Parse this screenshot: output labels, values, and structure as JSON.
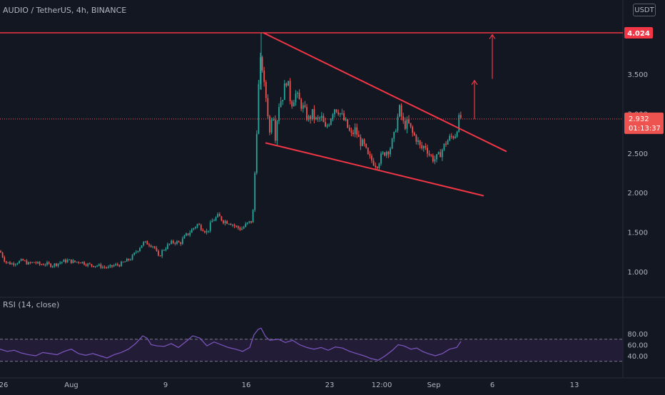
{
  "header": {
    "title": "AUDIO / TetherUS, 4h, BINANCE",
    "currency": "USDT"
  },
  "price_tags": {
    "resistance": "4.024",
    "last_price": "2.932",
    "countdown": "01:13:37"
  },
  "rsi": {
    "label": "RSI (14, close)"
  },
  "colors": {
    "background": "#131722",
    "up": "#26a69a",
    "down": "#ef5350",
    "drawing": "#f23645",
    "rsi_line": "#7e57c2",
    "rsi_band": "#2a1f3d",
    "axis_text": "#b2b5be",
    "grid": "#1e222d"
  },
  "chart_data": [
    {
      "type": "candlestick",
      "title": "AUDIO / TetherUS, 4h, BINANCE",
      "y_ticks": [
        "3.500",
        "3.000",
        "2.500",
        "2.000",
        "1.500",
        "1.000"
      ],
      "y_tick_values": [
        3.5,
        3.0,
        2.5,
        2.0,
        1.5,
        1.0
      ],
      "ylim": [
        0.9,
        4.2
      ],
      "x_ticks": [
        "26",
        "Aug",
        "9",
        "16",
        "23",
        "12:00",
        "Sep",
        "6",
        "13"
      ],
      "horizontal_line": 4.024,
      "last_price": 2.932,
      "close_path": [
        [
          0,
          1.26
        ],
        [
          8,
          1.12
        ],
        [
          16,
          1.1
        ],
        [
          24,
          1.12
        ],
        [
          32,
          1.14
        ],
        [
          40,
          1.1
        ],
        [
          48,
          1.12
        ],
        [
          56,
          1.09
        ],
        [
          64,
          1.1
        ],
        [
          72,
          1.08
        ],
        [
          80,
          1.1
        ],
        [
          88,
          1.13
        ],
        [
          96,
          1.14
        ],
        [
          104,
          1.12
        ],
        [
          112,
          1.13
        ],
        [
          120,
          1.1
        ],
        [
          128,
          1.08
        ],
        [
          136,
          1.08
        ],
        [
          144,
          1.06
        ],
        [
          152,
          1.05
        ],
        [
          160,
          1.08
        ],
        [
          168,
          1.09
        ],
        [
          176,
          1.13
        ],
        [
          184,
          1.17
        ],
        [
          192,
          1.27
        ],
        [
          200,
          1.36
        ],
        [
          208,
          1.36
        ],
        [
          216,
          1.32
        ],
        [
          222,
          1.18
        ],
        [
          228,
          1.27
        ],
        [
          236,
          1.34
        ],
        [
          244,
          1.38
        ],
        [
          252,
          1.36
        ],
        [
          260,
          1.45
        ],
        [
          268,
          1.52
        ],
        [
          276,
          1.6
        ],
        [
          284,
          1.55
        ],
        [
          290,
          1.5
        ],
        [
          298,
          1.65
        ],
        [
          306,
          1.7
        ],
        [
          314,
          1.64
        ],
        [
          322,
          1.63
        ],
        [
          330,
          1.57
        ],
        [
          338,
          1.54
        ],
        [
          346,
          1.6
        ],
        [
          354,
          1.65
        ],
        [
          358,
          2.4
        ],
        [
          362,
          3.3
        ],
        [
          366,
          3.75
        ],
        [
          370,
          3.35
        ],
        [
          374,
          3.15
        ],
        [
          378,
          2.75
        ],
        [
          382,
          3.1
        ],
        [
          386,
          2.7
        ],
        [
          390,
          3.1
        ],
        [
          396,
          3.22
        ],
        [
          402,
          3.45
        ],
        [
          408,
          3.12
        ],
        [
          414,
          3.25
        ],
        [
          420,
          3.15
        ],
        [
          426,
          3.05
        ],
        [
          432,
          2.92
        ],
        [
          438,
          3.0
        ],
        [
          444,
          2.9
        ],
        [
          450,
          2.96
        ],
        [
          456,
          2.8
        ],
        [
          462,
          2.92
        ],
        [
          468,
          3.08
        ],
        [
          474,
          3.05
        ],
        [
          480,
          2.95
        ],
        [
          486,
          2.85
        ],
        [
          492,
          2.72
        ],
        [
          498,
          2.8
        ],
        [
          504,
          2.65
        ],
        [
          510,
          2.6
        ],
        [
          516,
          2.45
        ],
        [
          522,
          2.4
        ],
        [
          528,
          2.35
        ],
        [
          534,
          2.45
        ],
        [
          540,
          2.52
        ],
        [
          546,
          2.55
        ],
        [
          552,
          2.7
        ],
        [
          556,
          2.9
        ],
        [
          560,
          3.05
        ],
        [
          566,
          2.85
        ],
        [
          572,
          2.88
        ],
        [
          578,
          2.75
        ],
        [
          584,
          2.68
        ],
        [
          590,
          2.55
        ],
        [
          596,
          2.6
        ],
        [
          602,
          2.48
        ],
        [
          608,
          2.42
        ],
        [
          614,
          2.45
        ],
        [
          620,
          2.55
        ],
        [
          626,
          2.65
        ],
        [
          632,
          2.7
        ],
        [
          638,
          2.74
        ],
        [
          644,
          2.95
        ]
      ],
      "annotations": {
        "wedge_upper": [
          [
            369,
            4.024
          ],
          [
            710,
            2.52
          ]
        ],
        "wedge_lower": [
          [
            372,
            2.63
          ],
          [
            678,
            1.96
          ]
        ],
        "arrow_short": [
          [
            665,
            2.93
          ],
          [
            665,
            3.42
          ]
        ],
        "arrow_long": [
          [
            690,
            3.44
          ],
          [
            690,
            4.0
          ]
        ]
      }
    },
    {
      "type": "line",
      "title": "RSI (14, close)",
      "y_ticks": [
        "80.00",
        "60.00",
        "40.00"
      ],
      "y_tick_values": [
        80,
        60,
        40
      ],
      "ylim": [
        25,
        95
      ],
      "band": [
        30,
        70
      ],
      "path": [
        [
          0,
          52
        ],
        [
          10,
          48
        ],
        [
          20,
          50
        ],
        [
          30,
          45
        ],
        [
          40,
          42
        ],
        [
          50,
          40
        ],
        [
          60,
          46
        ],
        [
          70,
          44
        ],
        [
          80,
          42
        ],
        [
          90,
          48
        ],
        [
          100,
          52
        ],
        [
          110,
          44
        ],
        [
          120,
          41
        ],
        [
          130,
          44
        ],
        [
          140,
          40
        ],
        [
          150,
          36
        ],
        [
          160,
          42
        ],
        [
          170,
          46
        ],
        [
          180,
          52
        ],
        [
          190,
          62
        ],
        [
          200,
          76
        ],
        [
          206,
          72
        ],
        [
          212,
          60
        ],
        [
          220,
          58
        ],
        [
          230,
          57
        ],
        [
          240,
          62
        ],
        [
          250,
          55
        ],
        [
          260,
          65
        ],
        [
          270,
          76
        ],
        [
          280,
          72
        ],
        [
          290,
          58
        ],
        [
          300,
          65
        ],
        [
          310,
          60
        ],
        [
          320,
          55
        ],
        [
          330,
          52
        ],
        [
          340,
          48
        ],
        [
          350,
          55
        ],
        [
          356,
          78
        ],
        [
          362,
          88
        ],
        [
          366,
          90
        ],
        [
          372,
          75
        ],
        [
          378,
          68
        ],
        [
          390,
          70
        ],
        [
          400,
          64
        ],
        [
          410,
          68
        ],
        [
          420,
          60
        ],
        [
          430,
          55
        ],
        [
          440,
          52
        ],
        [
          450,
          55
        ],
        [
          460,
          50
        ],
        [
          470,
          56
        ],
        [
          480,
          54
        ],
        [
          490,
          48
        ],
        [
          500,
          44
        ],
        [
          510,
          40
        ],
        [
          520,
          35
        ],
        [
          530,
          32
        ],
        [
          540,
          40
        ],
        [
          550,
          50
        ],
        [
          558,
          60
        ],
        [
          566,
          58
        ],
        [
          576,
          52
        ],
        [
          584,
          54
        ],
        [
          592,
          48
        ],
        [
          600,
          44
        ],
        [
          610,
          40
        ],
        [
          620,
          44
        ],
        [
          630,
          52
        ],
        [
          640,
          55
        ],
        [
          646,
          66
        ]
      ]
    }
  ]
}
